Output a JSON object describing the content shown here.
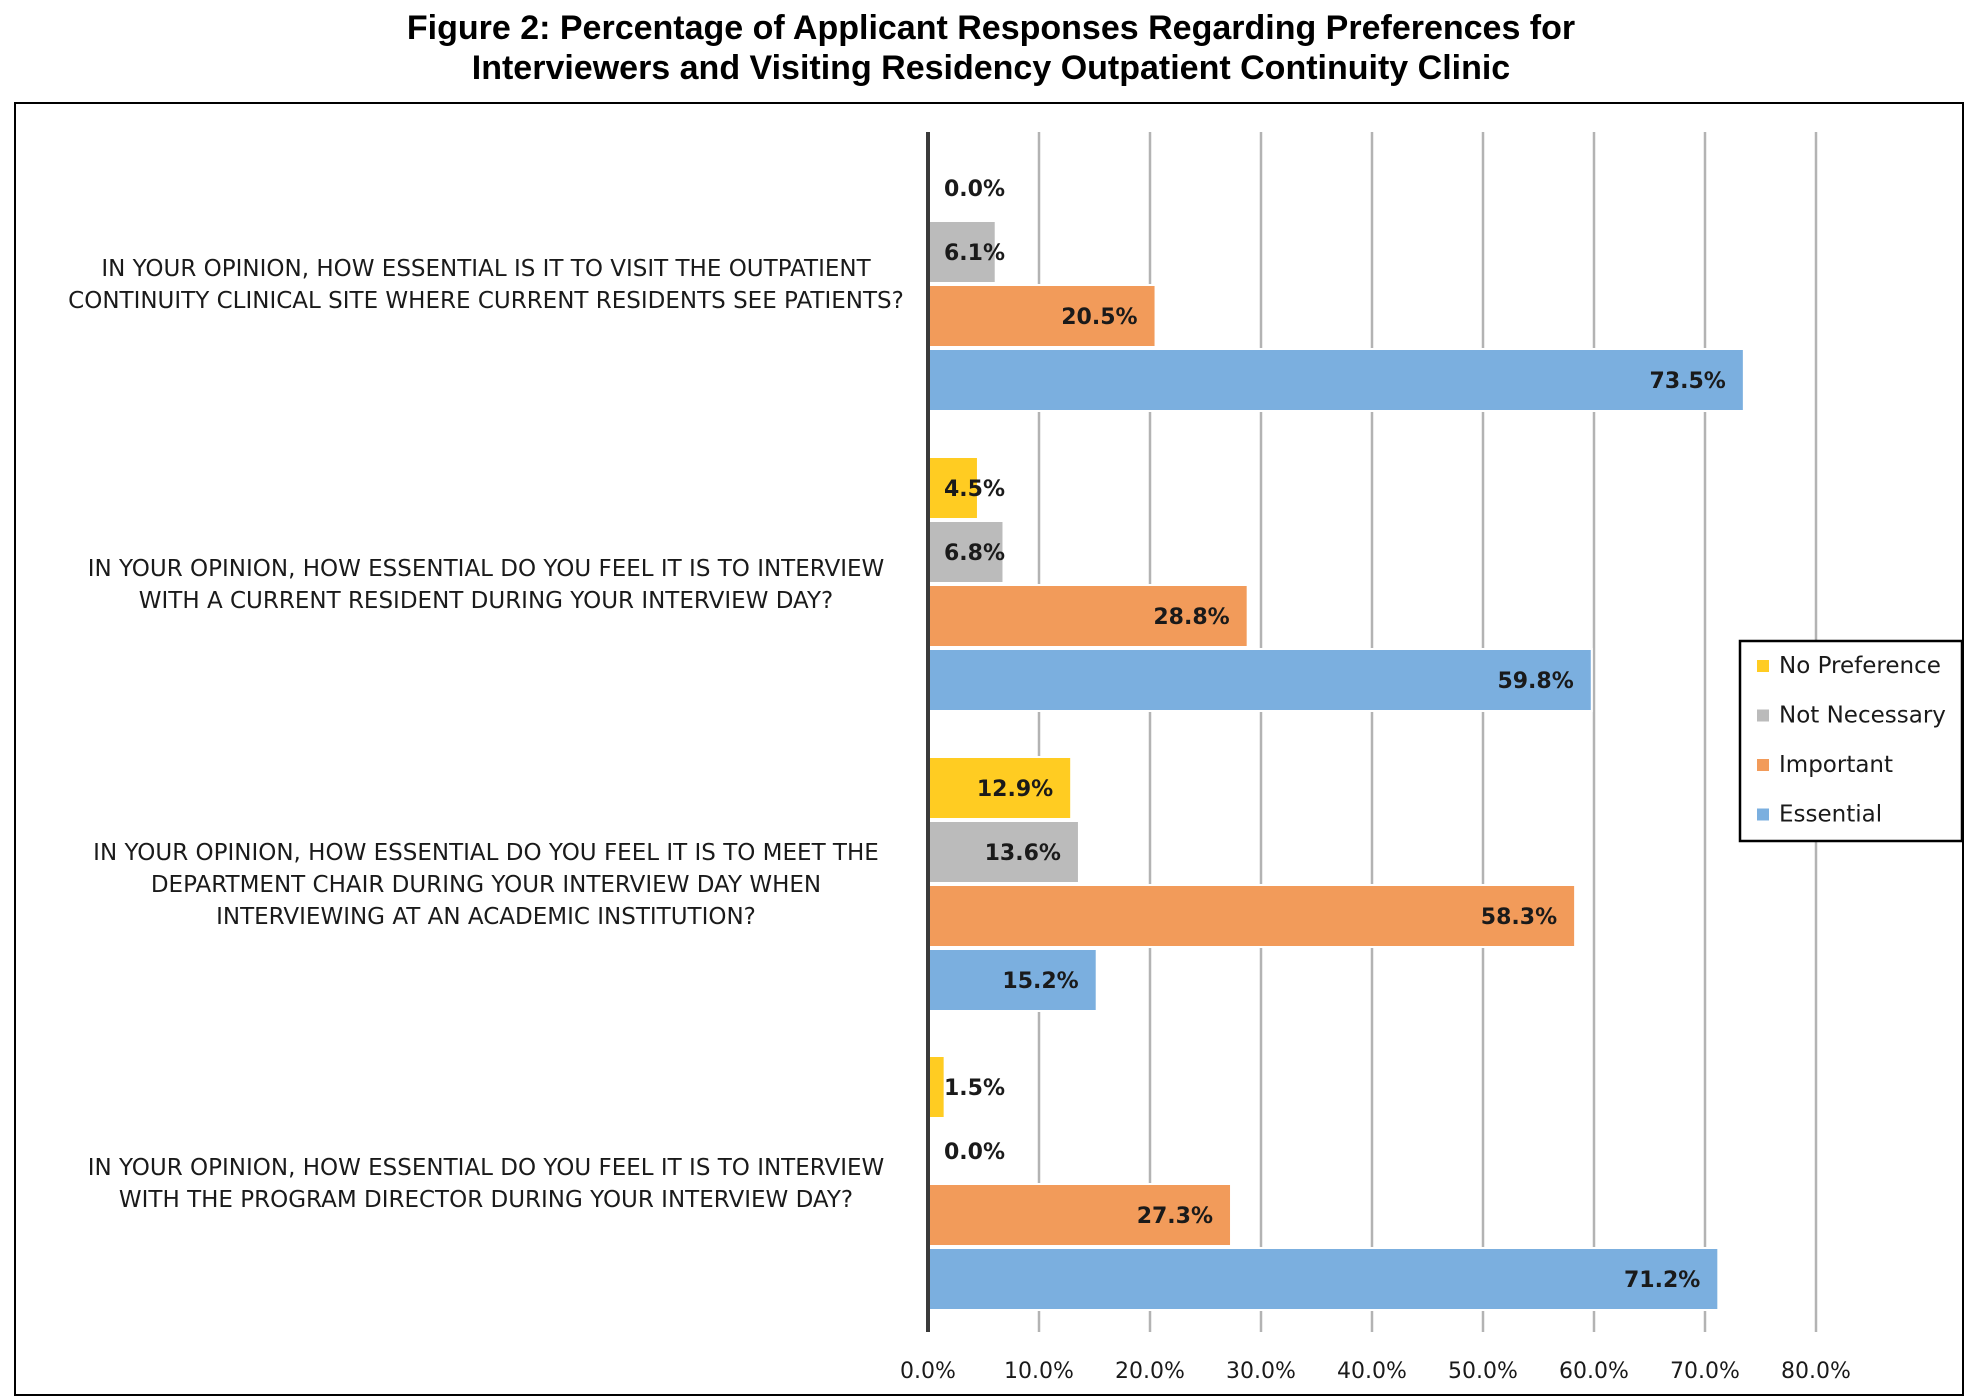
{
  "figure": {
    "title_line1": "Figure 2: Percentage of Applicant Responses Regarding Preferences for",
    "title_line2": "Interviewers and Visiting Residency Outpatient Continuity Clinic"
  },
  "chart_data": {
    "type": "bar",
    "orientation": "horizontal",
    "categories": [
      [
        "IN YOUR OPINION, HOW ESSENTIAL IS IT TO VISIT THE OUTPATIENT",
        "CONTINUITY CLINICAL SITE WHERE CURRENT RESIDENTS SEE PATIENTS?"
      ],
      [
        "IN YOUR OPINION, HOW ESSENTIAL DO YOU FEEL IT IS TO INTERVIEW",
        "WITH A CURRENT RESIDENT DURING YOUR INTERVIEW DAY?"
      ],
      [
        "IN YOUR OPINION, HOW ESSENTIAL DO YOU FEEL IT IS TO MEET THE",
        "DEPARTMENT CHAIR DURING YOUR INTERVIEW DAY WHEN",
        "INTERVIEWING AT AN ACADEMIC INSTITUTION?"
      ],
      [
        "IN YOUR OPINION, HOW ESSENTIAL DO YOU FEEL IT IS TO INTERVIEW",
        "WITH THE PROGRAM DIRECTOR DURING YOUR INTERVIEW DAY?"
      ]
    ],
    "series": [
      {
        "name": "No Preference",
        "color": "#FFCC22",
        "values": [
          0.0,
          4.5,
          12.9,
          1.5
        ],
        "labels": [
          "0.0%",
          "4.5%",
          "12.9%",
          "1.5%"
        ]
      },
      {
        "name": "Not Necessary",
        "color": "#BBBBBB",
        "values": [
          6.1,
          6.8,
          13.6,
          0.0
        ],
        "labels": [
          "6.1%",
          "6.8%",
          "13.6%",
          "0.0%"
        ]
      },
      {
        "name": "Important",
        "color": "#F29B5A",
        "values": [
          20.5,
          28.8,
          58.3,
          27.3
        ],
        "labels": [
          "20.5%",
          "28.8%",
          "58.3%",
          "27.3%"
        ]
      },
      {
        "name": "Essential",
        "color": "#7BAFDF",
        "values": [
          73.5,
          59.8,
          15.2,
          71.2
        ],
        "labels": [
          "73.5%",
          "59.8%",
          "15.2%",
          "71.2%"
        ]
      }
    ],
    "xlim": [
      0,
      80
    ],
    "x_ticks": [
      "0.0%",
      "10.0%",
      "20.0%",
      "30.0%",
      "40.0%",
      "50.0%",
      "60.0%",
      "70.0%",
      "80.0%"
    ],
    "legend": {
      "position": "right",
      "items": [
        {
          "name": "No Preference",
          "color": "#FFCC22"
        },
        {
          "name": "Not Necessary",
          "color": "#BBBBBB"
        },
        {
          "name": "Important",
          "color": "#F29B5A"
        },
        {
          "name": "Essential",
          "color": "#7BAFDF"
        }
      ]
    },
    "grid": true
  }
}
